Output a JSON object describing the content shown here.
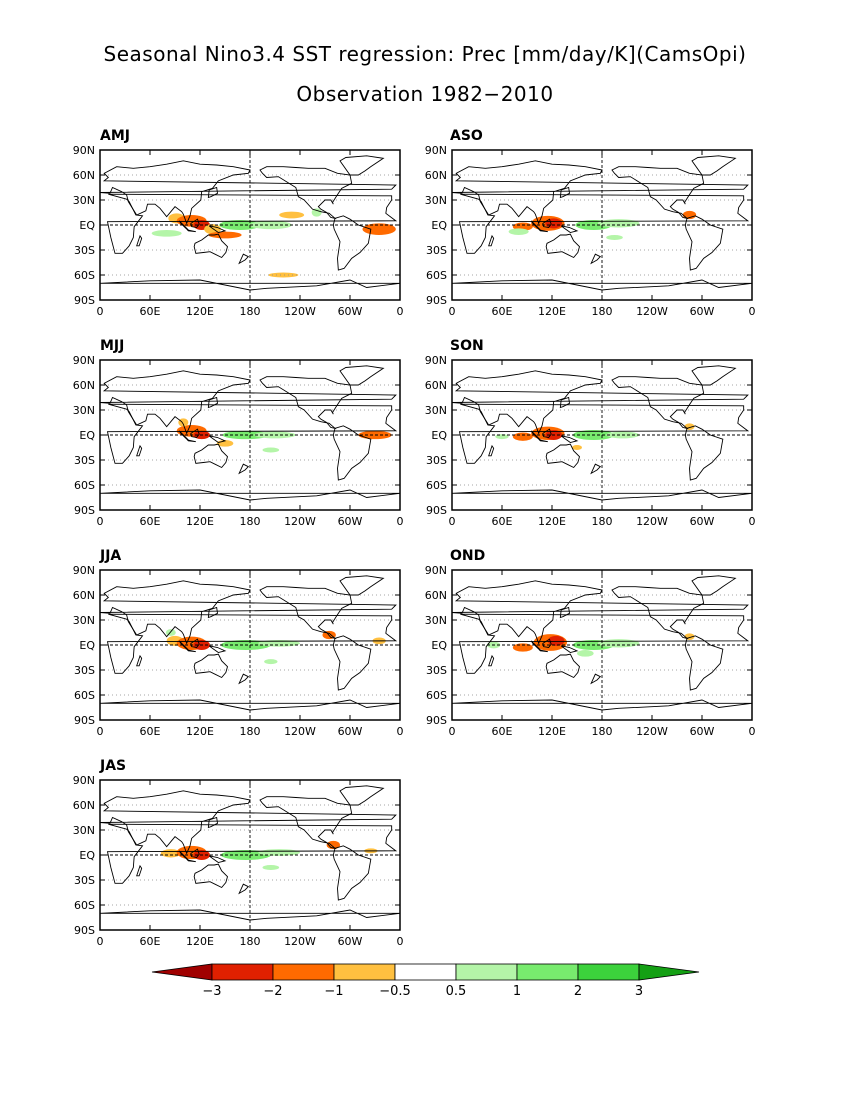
{
  "title": {
    "line1": "Seasonal Nino3.4 SST regression: Prec [mm/day/K](CamsOpi)",
    "line2": "Observation 1982−2010"
  },
  "lat_ticks": [
    "90N",
    "60N",
    "30N",
    "EQ",
    "30S",
    "60S",
    "90S"
  ],
  "lon_ticks": [
    "0",
    "60E",
    "120E",
    "180",
    "120W",
    "60W",
    "0"
  ],
  "colors": {
    "dark_red": "#a00000",
    "red": "#e02000",
    "orange": "#ff6a00",
    "light_orange": "#ffc040",
    "light_green": "#b4f5a8",
    "mid_green": "#78eb6e",
    "green": "#3cd23c",
    "dark_green": "#14a014"
  },
  "colorbar": {
    "labels": [
      "−3",
      "−2",
      "−1",
      "−0.5",
      "0.5",
      "1",
      "2",
      "3"
    ],
    "bin_colors": [
      "#a00000",
      "#e02000",
      "#ff6a00",
      "#ffc040",
      "#ffffff",
      "#b4f5a8",
      "#78eb6e",
      "#3cd23c",
      "#14a014"
    ]
  },
  "panels": [
    {
      "id": "AMJ",
      "label": "AMJ"
    },
    {
      "id": "ASO",
      "label": "ASO"
    },
    {
      "id": "MJJ",
      "label": "MJJ"
    },
    {
      "id": "SON",
      "label": "SON"
    },
    {
      "id": "JJA",
      "label": "JJA"
    },
    {
      "id": "OND",
      "label": "OND"
    },
    {
      "id": "JAS",
      "label": "JAS"
    }
  ]
}
